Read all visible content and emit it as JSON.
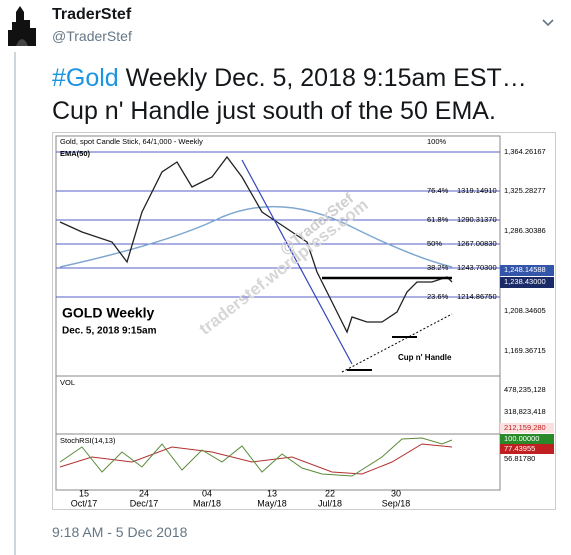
{
  "tweet": {
    "author_name": "TraderStef",
    "handle": "@TraderStef",
    "text_lines": [
      {
        "hashtag": "#Gold",
        "rest": " Weekly Dec. 5, 2018 9:15am EST…"
      },
      "Cup n' Handle just south of the 50 EMA."
    ],
    "timestamp": "9:18 AM - 5 Dec 2018"
  },
  "image": {
    "header": "Gold, spot   Candle Stick, 64/1,000 - Weekly",
    "ema_label": "EMA(50)",
    "fib_top": "100%",
    "fib_levels": [
      {
        "pct": "76.4%",
        "value": "1319.14910"
      },
      {
        "pct": "61.8%",
        "value": "1290.31370"
      },
      {
        "pct": "50%",
        "value": "1267.00830"
      },
      {
        "pct": "38.2%",
        "value": "1243.70300"
      },
      {
        "pct": "23.6%",
        "value": "1214.86750"
      }
    ],
    "price_labels": [
      "1,364.26167",
      "1,325.28277",
      "1,286.30386",
      "1,248.14588",
      "1,238.43000",
      "1,208.34605",
      "1,169.36715"
    ],
    "vol_label": "VOL",
    "vol_labels": [
      "478,235,128",
      "318,823,418",
      "212,159,280"
    ],
    "stoch_label": "StochRSI(14,13)",
    "stoch_labels": [
      "100.00000",
      "77.43955",
      "56.81780"
    ],
    "x_days": [
      "15",
      "24",
      "04",
      "13",
      "22",
      "30"
    ],
    "x_months": [
      "Oct/17",
      "Dec/17",
      "Mar/18",
      "May/18",
      "Jul/18",
      "Sep/18"
    ],
    "overlay_title": "GOLD Weekly",
    "overlay_date": "Dec. 5, 2018 9:15am",
    "pattern_label": "Cup n' Handle",
    "watermark_handle": "@TraderStef",
    "watermark_site": "traderstef.wordpress.com"
  }
}
